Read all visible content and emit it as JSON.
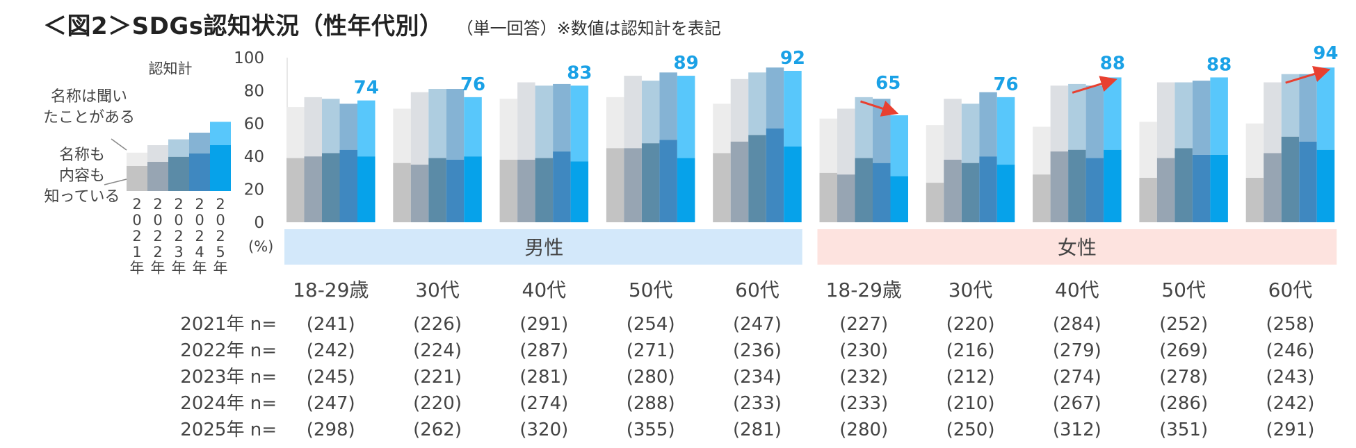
{
  "title": "＜図2＞SDGs認知状況（性年代別）",
  "title_note": "（単一回答）※数値は認知計を表記",
  "percent_unit": "(%)",
  "colors": {
    "total": [
      "#ececec",
      "#dcdfe3",
      "#aecde0",
      "#85b3d4",
      "#58c7fb"
    ],
    "content": [
      "#c3c3c3",
      "#97a5b3",
      "#5b8ba7",
      "#3f88c0",
      "#06a2ea"
    ],
    "value_label": "#1aa1e6",
    "arrow": "#e84030",
    "male_band": "#d3e8fa",
    "female_band": "#fde3df"
  },
  "legend": {
    "title": "認知計",
    "label_heard": "名称は聞い\nたことがある",
    "label_know": "名称も\n内容も\n知っている",
    "years": [
      "2021年",
      "2022年",
      "2023年",
      "2024年",
      "2025年"
    ],
    "total": [
      46,
      55,
      62,
      70,
      83
    ],
    "content": [
      30,
      35,
      41,
      45,
      55
    ]
  },
  "chart_data": {
    "type": "bar",
    "title": "SDGs認知状況（性年代別）",
    "ylim": [
      0,
      100
    ],
    "yticks": [
      0,
      20,
      40,
      60,
      80,
      100
    ],
    "series": [
      {
        "name": "2021年"
      },
      {
        "name": "2022年"
      },
      {
        "name": "2023年"
      },
      {
        "name": "2024年"
      },
      {
        "name": "2025年"
      }
    ],
    "genders": [
      {
        "label": "男性",
        "start": 0,
        "end": 4
      },
      {
        "label": "女性",
        "start": 5,
        "end": 9
      }
    ],
    "groups": [
      {
        "label": "18-29歳",
        "total": [
          70,
          76,
          75,
          72,
          74
        ],
        "content": [
          39,
          40,
          42,
          44,
          40
        ],
        "value_label": "74",
        "arrow": false,
        "n": [
          "(241)",
          "(242)",
          "(245)",
          "(247)",
          "(298)"
        ]
      },
      {
        "label": "30代",
        "total": [
          69,
          79,
          81,
          81,
          76
        ],
        "content": [
          36,
          35,
          39,
          38,
          40
        ],
        "value_label": "76",
        "arrow": false,
        "n": [
          "(226)",
          "(224)",
          "(221)",
          "(220)",
          "(262)"
        ]
      },
      {
        "label": "40代",
        "total": [
          75,
          85,
          83,
          84,
          83
        ],
        "content": [
          38,
          38,
          39,
          43,
          37
        ],
        "value_label": "83",
        "arrow": false,
        "n": [
          "(291)",
          "(287)",
          "(281)",
          "(274)",
          "(320)"
        ]
      },
      {
        "label": "50代",
        "total": [
          76,
          89,
          86,
          91,
          89
        ],
        "content": [
          45,
          45,
          48,
          50,
          39
        ],
        "value_label": "89",
        "arrow": false,
        "n": [
          "(254)",
          "(271)",
          "(280)",
          "(288)",
          "(355)"
        ]
      },
      {
        "label": "60代",
        "total": [
          72,
          87,
          91,
          94,
          92
        ],
        "content": [
          42,
          49,
          53,
          57,
          46
        ],
        "value_label": "92",
        "arrow": false,
        "n": [
          "(247)",
          "(236)",
          "(234)",
          "(233)",
          "(281)"
        ]
      },
      {
        "label": "18-29歳",
        "total": [
          63,
          69,
          76,
          75,
          65
        ],
        "content": [
          30,
          29,
          39,
          36,
          28
        ],
        "value_label": "65",
        "arrow": true,
        "arrow_dir": "down",
        "n": [
          "(227)",
          "(230)",
          "(232)",
          "(233)",
          "(280)"
        ]
      },
      {
        "label": "30代",
        "total": [
          59,
          75,
          72,
          79,
          76
        ],
        "content": [
          24,
          38,
          36,
          40,
          35
        ],
        "value_label": "76",
        "arrow": false,
        "n": [
          "(220)",
          "(216)",
          "(212)",
          "(210)",
          "(250)"
        ]
      },
      {
        "label": "40代",
        "total": [
          58,
          83,
          84,
          83,
          88
        ],
        "content": [
          29,
          43,
          44,
          39,
          44
        ],
        "value_label": "88",
        "arrow": true,
        "arrow_dir": "up",
        "n": [
          "(284)",
          "(279)",
          "(274)",
          "(267)",
          "(312)"
        ]
      },
      {
        "label": "50代",
        "total": [
          61,
          85,
          85,
          86,
          88
        ],
        "content": [
          27,
          39,
          45,
          41,
          41
        ],
        "value_label": "88",
        "arrow": false,
        "n": [
          "(252)",
          "(269)",
          "(278)",
          "(286)",
          "(351)"
        ]
      },
      {
        "label": "60代",
        "total": [
          60,
          85,
          90,
          90,
          94
        ],
        "content": [
          27,
          42,
          52,
          49,
          44
        ],
        "value_label": "94",
        "arrow": true,
        "arrow_dir": "up",
        "n": [
          "(258)",
          "(246)",
          "(243)",
          "(242)",
          "(291)"
        ]
      }
    ],
    "n_row_labels": [
      "2021年 n=",
      "2022年 n=",
      "2023年 n=",
      "2024年 n=",
      "2025年 n="
    ]
  }
}
